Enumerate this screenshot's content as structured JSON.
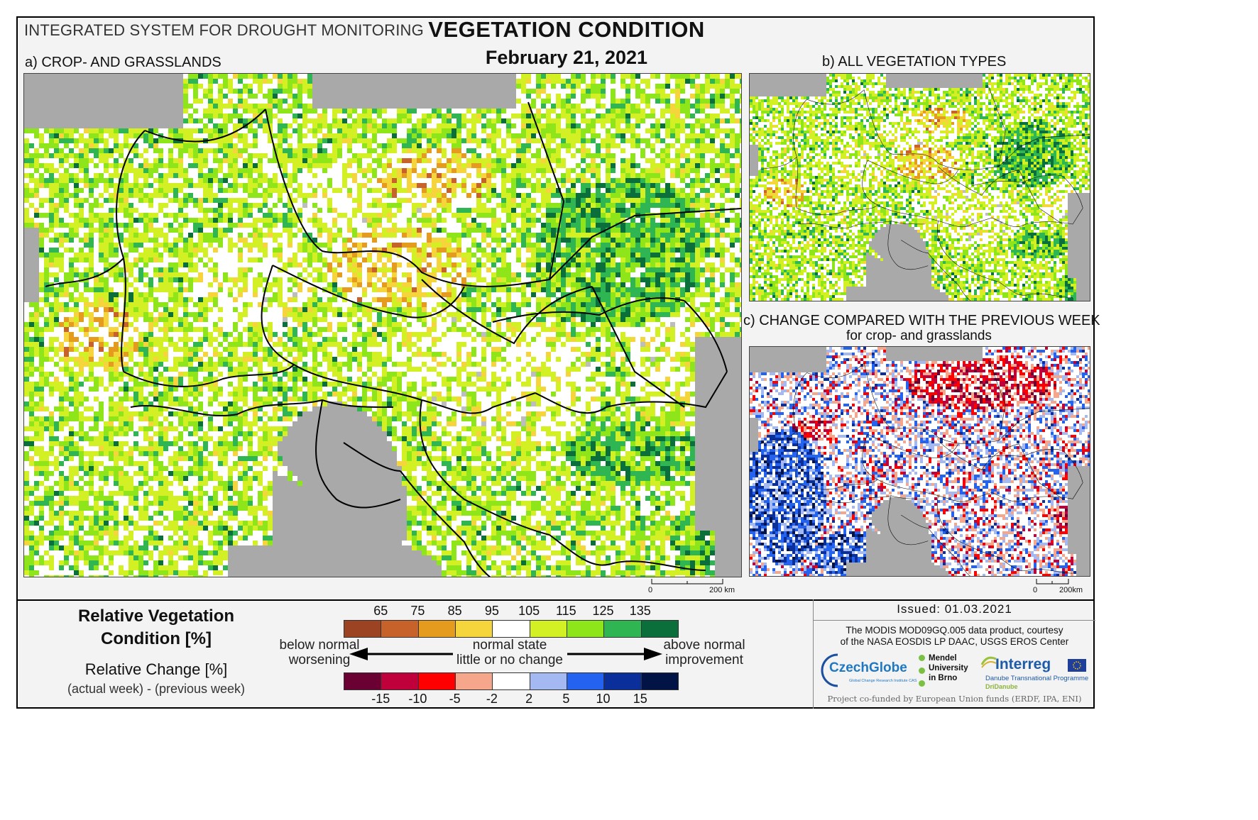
{
  "header": {
    "system_name": "INTEGRATED SYSTEM FOR DROUGHT MONITORING",
    "title": "VEGETATION CONDITION",
    "date": "February 21, 2021"
  },
  "panels": {
    "a": {
      "label": "a) CROP- AND GRASSLANDS",
      "scale_zero": "0",
      "scale_end": "200 km"
    },
    "b": {
      "label": "b) ALL VEGETATION TYPES",
      "scale_zero": "0",
      "scale_end": "200km"
    },
    "c": {
      "label": "c) CHANGE COMPARED WITH THE PREVIOUS WEEK",
      "sublabel": "for crop- and grasslands"
    }
  },
  "legend": {
    "rvc_title_line1": "Relative Vegetation",
    "rvc_title_line2": "Condition [%]",
    "rvc_ticks": [
      "65",
      "75",
      "85",
      "95",
      "105",
      "115",
      "125",
      "135"
    ],
    "rvc_colors": [
      "#9c4324",
      "#c7622a",
      "#e49b1e",
      "#f6d43c",
      "#ffffff",
      "#d2f024",
      "#8ee61a",
      "#2fb652",
      "#0b6f3c"
    ],
    "rc_title": "Relative Change [%]",
    "rc_subtitle": "(actual week) - (previous week)",
    "rc_ticks": [
      "-15",
      "-10",
      "-5",
      "-2",
      "2",
      "5",
      "10",
      "15"
    ],
    "rc_colors": [
      "#6b0033",
      "#c0003a",
      "#ff0000",
      "#f6a68a",
      "#ffffff",
      "#a4b8f2",
      "#2462f0",
      "#0a2f9a",
      "#021345"
    ],
    "below_normal": "below normal",
    "worsening": "worsening",
    "normal_state": "normal state",
    "little_change": "little or no change",
    "above_normal": "above normal",
    "improvement": "improvement"
  },
  "credits": {
    "issued": "Issued: 01.03.2021",
    "courtesy_line1": "The MODIS MOD09GQ.005 data product, courtesy",
    "courtesy_line2": "of the NASA EOSDIS LP DAAC, USGS EROS Center",
    "czechglobe": "CzechGlobe",
    "czechglobe_sub": "Global Change Research Institute CAS",
    "mendel": [
      "Mendel",
      "University",
      "in Brno"
    ],
    "interreg": "Interreg",
    "interreg_sub": "Danube Transnational Programme",
    "dridanube": "DriDanube",
    "funded": "Project co-funded by European Union funds (ERDF, IPA, ENI)"
  }
}
